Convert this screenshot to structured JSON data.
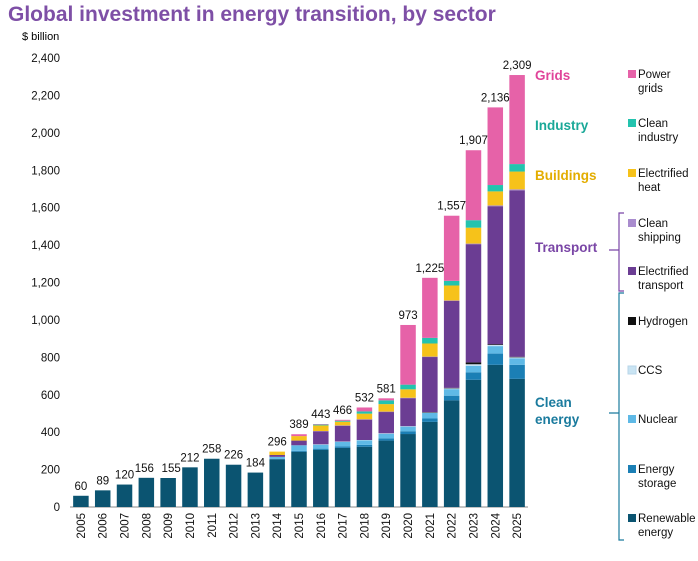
{
  "title": "Global investment in energy transition, by sector",
  "y_unit": "$ billion",
  "colors": {
    "renewable_energy": "#0b5471",
    "energy_storage": "#1b7fb5",
    "nuclear": "#5fb9e6",
    "ccs": "#c9e4f3",
    "hydrogen": "#111111",
    "electrified_transport": "#6b3d93",
    "clean_shipping": "#a98cce",
    "electrified_heat": "#f6c21a",
    "clean_industry": "#23c3ae",
    "power_grids": "#e662a8",
    "grids_label": "#e0449a",
    "industry_label": "#1aa898",
    "buildings_label": "#e3ad00",
    "transport_label": "#7a46a6",
    "clean_energy_label": "#1b7b9e"
  },
  "chart_data": {
    "type": "bar",
    "stacked": true,
    "title": "Global investment in energy transition, by sector",
    "ylabel": "$ billion",
    "ylim": [
      0,
      2400
    ],
    "yticks": [
      "0",
      "200",
      "400",
      "600",
      "800",
      "1,000",
      "1,200",
      "1,400",
      "1,600",
      "1,800",
      "2,000",
      "2,200",
      "2,400"
    ],
    "ytick_values": [
      0,
      200,
      400,
      600,
      800,
      1000,
      1200,
      1400,
      1600,
      1800,
      2000,
      2200,
      2400
    ],
    "categories": [
      "2005",
      "2006",
      "2007",
      "2008",
      "2009",
      "2010",
      "2011",
      "2012",
      "2013",
      "2014",
      "2015",
      "2016",
      "2017",
      "2018",
      "2019",
      "2020",
      "2021",
      "2022",
      "2023",
      "2024",
      "2025"
    ],
    "totals": [
      60,
      89,
      120,
      156,
      155,
      212,
      258,
      226,
      184,
      296,
      389,
      443,
      466,
      532,
      581,
      973,
      1225,
      1557,
      1907,
      2136,
      2309
    ],
    "total_labels": [
      "60",
      "89",
      "120",
      "156",
      "155",
      "212",
      "258",
      "226",
      "184",
      "296",
      "389",
      "443",
      "466",
      "532",
      "581",
      "973",
      "1,225",
      "1,557",
      "1,907",
      "2,136",
      "2,309"
    ],
    "series": [
      {
        "key": "renewable_energy",
        "name": "Renewable energy",
        "values": [
          60,
          89,
          120,
          156,
          155,
          212,
          258,
          226,
          184,
          255,
          295,
          305,
          316,
          322,
          355,
          390,
          455,
          570,
          680,
          760,
          685
        ]
      },
      {
        "key": "energy_storage",
        "name": "Energy storage",
        "values": [
          0,
          0,
          0,
          0,
          0,
          0,
          0,
          0,
          0,
          3,
          5,
          7,
          8,
          10,
          12,
          15,
          18,
          25,
          40,
          60,
          75
        ]
      },
      {
        "key": "nuclear",
        "name": "Nuclear",
        "values": [
          0,
          0,
          0,
          0,
          0,
          0,
          0,
          0,
          0,
          10,
          30,
          22,
          25,
          25,
          25,
          25,
          30,
          35,
          35,
          40,
          35
        ]
      },
      {
        "key": "ccs",
        "name": "CCS",
        "values": [
          0,
          0,
          0,
          0,
          0,
          0,
          0,
          0,
          0,
          0,
          0,
          1,
          1,
          1,
          2,
          2,
          3,
          5,
          8,
          6,
          5
        ]
      },
      {
        "key": "hydrogen",
        "name": "Hydrogen",
        "values": [
          0,
          0,
          0,
          0,
          0,
          0,
          0,
          0,
          0,
          0,
          0,
          0,
          0,
          0,
          0,
          0,
          1,
          2,
          10,
          4,
          3
        ]
      },
      {
        "key": "electrified_transport",
        "name": "Electrified transport",
        "values": [
          0,
          0,
          0,
          0,
          0,
          0,
          0,
          0,
          0,
          10,
          25,
          70,
          85,
          110,
          115,
          150,
          295,
          465,
          632,
          738,
          890
        ]
      },
      {
        "key": "clean_shipping",
        "name": "Clean shipping",
        "values": [
          0,
          0,
          0,
          0,
          0,
          0,
          0,
          0,
          0,
          0,
          0,
          1,
          1,
          1,
          1,
          2,
          2,
          2,
          3,
          4,
          5
        ]
      },
      {
        "key": "electrified_heat",
        "name": "Electrified heat",
        "values": [
          0,
          0,
          0,
          0,
          0,
          0,
          0,
          0,
          0,
          18,
          24,
          30,
          20,
          30,
          40,
          45,
          70,
          80,
          85,
          75,
          95
        ]
      },
      {
        "key": "clean_industry",
        "name": "Clean industry",
        "values": [
          0,
          0,
          0,
          0,
          0,
          0,
          0,
          0,
          0,
          0,
          0,
          5,
          5,
          12,
          20,
          25,
          30,
          25,
          40,
          34,
          40
        ]
      },
      {
        "key": "power_grids",
        "name": "Power grids",
        "values": [
          0,
          0,
          0,
          0,
          0,
          0,
          0,
          0,
          0,
          0,
          10,
          2,
          5,
          21,
          11,
          319,
          321,
          348,
          374,
          415,
          476
        ]
      }
    ],
    "legend": {
      "placement": "right",
      "groups": [
        {
          "key": "grids_label",
          "label": "Grids",
          "items": [
            {
              "key": "power_grids",
              "line1": "Power",
              "line2": "grids"
            }
          ]
        },
        {
          "key": "industry_label",
          "label": "Industry",
          "items": [
            {
              "key": "clean_industry",
              "line1": "Clean",
              "line2": "industry"
            }
          ]
        },
        {
          "key": "buildings_label",
          "label": "Buildings",
          "items": [
            {
              "key": "electrified_heat",
              "line1": "Electrified",
              "line2": "heat"
            }
          ]
        },
        {
          "key": "transport_label",
          "label": "Transport",
          "items": [
            {
              "key": "clean_shipping",
              "line1": "Clean",
              "line2": "shipping"
            },
            {
              "key": "electrified_transport",
              "line1": "Electrified",
              "line2": "transport"
            }
          ]
        },
        {
          "key": "clean_energy_label",
          "label1": "Clean",
          "label2": "energy",
          "items": [
            {
              "key": "hydrogen",
              "line1": "Hydrogen",
              "line2": ""
            },
            {
              "key": "ccs",
              "line1": "CCS",
              "line2": ""
            },
            {
              "key": "nuclear",
              "line1": "Nuclear",
              "line2": ""
            },
            {
              "key": "energy_storage",
              "line1": "Energy",
              "line2": "storage"
            },
            {
              "key": "renewable_energy",
              "line1": "Renewable",
              "line2": "energy"
            }
          ]
        }
      ]
    }
  }
}
